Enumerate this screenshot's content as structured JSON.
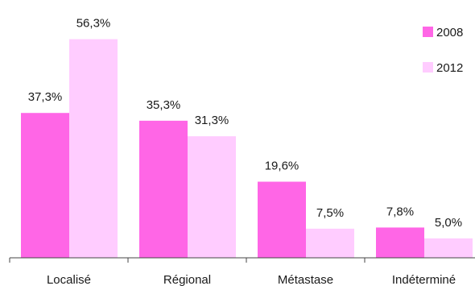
{
  "chart_data": {
    "type": "bar",
    "categories": [
      "Localisé",
      "Régional",
      "Métastase",
      "Indéterminé"
    ],
    "series": [
      {
        "name": "2008",
        "values": [
          37.3,
          35.3,
          19.6,
          7.8
        ],
        "labels": [
          "37,3%",
          "35,3%",
          "19,6%",
          "7,8%"
        ],
        "color": "#ff66e6"
      },
      {
        "name": "2012",
        "values": [
          56.3,
          31.3,
          7.5,
          5.0
        ],
        "labels": [
          "56,3%",
          "31,3%",
          "7,5%",
          "5,0%"
        ],
        "color": "#ffccff"
      }
    ],
    "ylim": [
      0,
      64
    ],
    "grid": false,
    "legend_position": "top-right"
  }
}
